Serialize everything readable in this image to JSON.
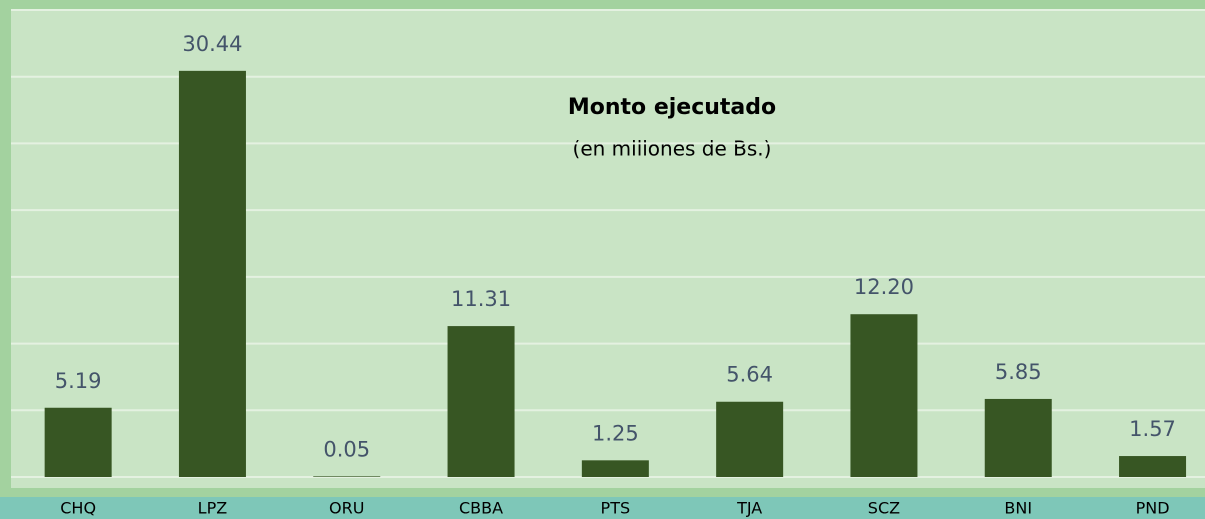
{
  "chart_data": {
    "type": "bar",
    "title": "Monto ejecutado",
    "subtitle": "(en millones de Bs.)",
    "categories": [
      "CHQ",
      "LPZ",
      "ORU",
      "CBBA",
      "PTS",
      "TJA",
      "SCZ",
      "BNI",
      "PND"
    ],
    "values": [
      5.19,
      30.44,
      0.05,
      11.31,
      1.25,
      5.64,
      12.2,
      5.85,
      1.57
    ],
    "value_labels": [
      "5.19",
      "30.44",
      "0.05",
      "11.31",
      "1.25",
      "5.64",
      "12.20",
      "5.85",
      "1.57"
    ],
    "color": "#375623",
    "ylim": [
      0,
      35
    ],
    "yticks": [
      0,
      5,
      10,
      15,
      20,
      25,
      30,
      35
    ],
    "grid": true
  }
}
